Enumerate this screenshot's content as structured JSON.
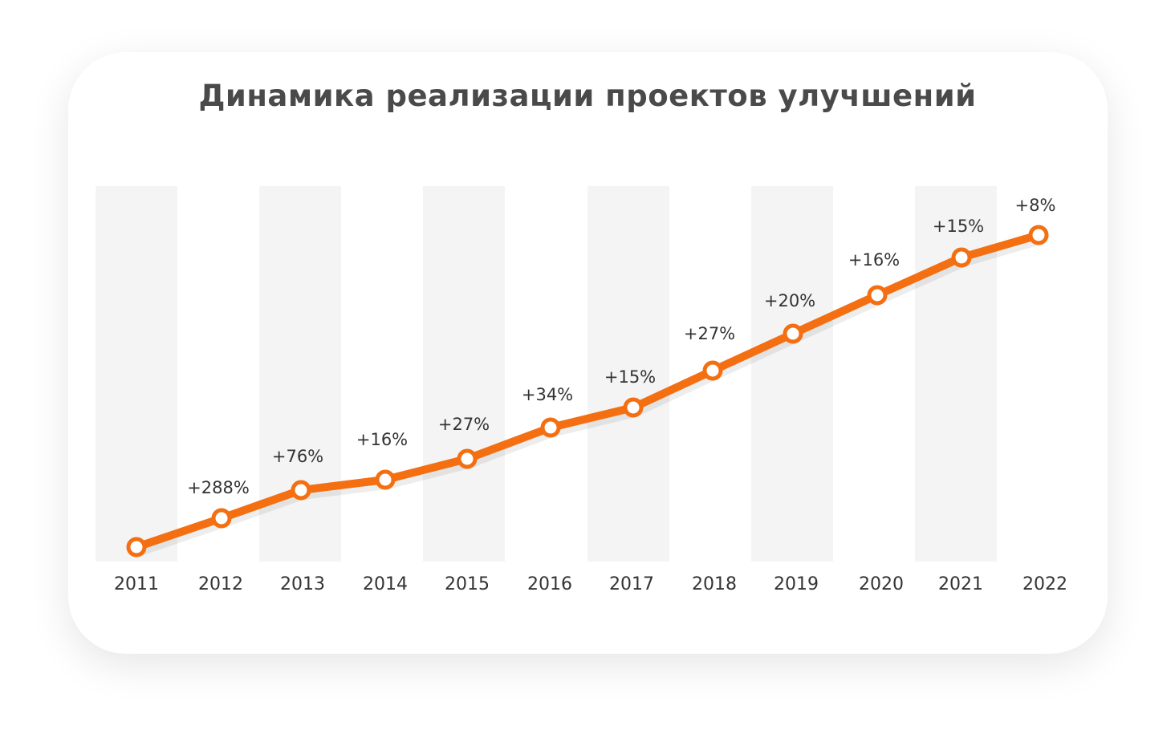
{
  "chart_data": {
    "type": "line",
    "title": "Динамика реализации проектов улучшений",
    "categories": [
      "2011",
      "2012",
      "2013",
      "2014",
      "2015",
      "2016",
      "2017",
      "2018",
      "2019",
      "2020",
      "2021",
      "2022"
    ],
    "data_labels": [
      "",
      "+288%",
      "+76%",
      "+16%",
      "+27%",
      "+34%",
      "+15%",
      "+27%",
      "+20%",
      "+16%",
      "+15%",
      "+8%"
    ],
    "xlabel": "",
    "ylabel": "",
    "y_axis_shown": false,
    "grid": false,
    "alternating_column_bands": true,
    "legend": "none",
    "colors": {
      "line": "#f36f12",
      "marker_fill": "#ffffff",
      "band": "#f4f4f4",
      "text": "#333333",
      "title": "#4a4a4a"
    }
  }
}
